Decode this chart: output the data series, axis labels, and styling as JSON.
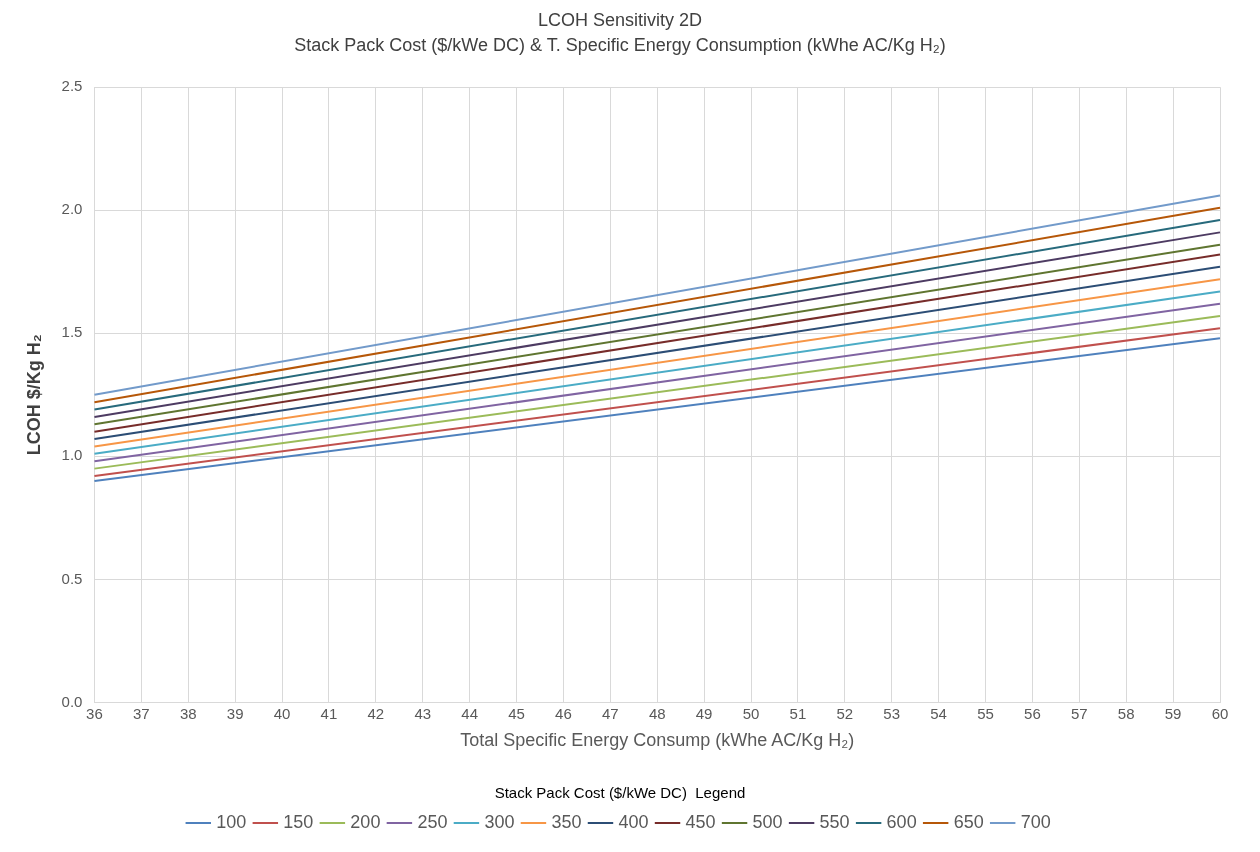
{
  "chart_data": {
    "type": "line",
    "title": "LCOH Sensitivity 2D",
    "subtitle": "Stack Pack Cost ($/kWe DC) & T. Specific Energy Consumption (kWhe AC/Kg H₂)",
    "xlabel": "Total Specific Energy Consump (kWhe AC/Kg H₂)",
    "ylabel": "LCOH $/Kg H₂",
    "legend_title": "Stack Pack Cost ($/kWe DC)  Legend",
    "legend": "bottom",
    "grid": true,
    "marker": "none",
    "line_style": "solid",
    "x": [
      36,
      60
    ],
    "xlim": [
      36,
      60
    ],
    "xticks": [
      36,
      37,
      38,
      39,
      40,
      41,
      42,
      43,
      44,
      45,
      46,
      47,
      48,
      49,
      50,
      51,
      52,
      53,
      54,
      55,
      56,
      57,
      58,
      59,
      60
    ],
    "ylim": [
      0,
      2.5
    ],
    "yticks": [
      {
        "value": 0,
        "label": "0.0"
      },
      {
        "value": 0.5,
        "label": "0.5"
      },
      {
        "value": 1,
        "label": "1.0"
      },
      {
        "value": 1.5,
        "label": "1.5"
      },
      {
        "value": 2,
        "label": "2.0"
      },
      {
        "value": 2.5,
        "label": "2.5"
      }
    ],
    "series": [
      {
        "name": "100",
        "color": "#4f81bd",
        "values": [
          0.9,
          1.48
        ]
      },
      {
        "name": "150",
        "color": "#c0504d",
        "values": [
          0.92,
          1.52
        ]
      },
      {
        "name": "200",
        "color": "#9bbb59",
        "values": [
          0.95,
          1.57
        ]
      },
      {
        "name": "250",
        "color": "#8064a2",
        "values": [
          0.98,
          1.62
        ]
      },
      {
        "name": "300",
        "color": "#4bacc6",
        "values": [
          1.01,
          1.67
        ]
      },
      {
        "name": "350",
        "color": "#f79646",
        "values": [
          1.04,
          1.72
        ]
      },
      {
        "name": "400",
        "color": "#2c4d75",
        "values": [
          1.07,
          1.77
        ]
      },
      {
        "name": "450",
        "color": "#772c2a",
        "values": [
          1.1,
          1.82
        ]
      },
      {
        "name": "500",
        "color": "#5f7530",
        "values": [
          1.13,
          1.86
        ]
      },
      {
        "name": "550",
        "color": "#4d3b62",
        "values": [
          1.16,
          1.91
        ]
      },
      {
        "name": "600",
        "color": "#276a7c",
        "values": [
          1.19,
          1.96
        ]
      },
      {
        "name": "650",
        "color": "#b65708",
        "values": [
          1.22,
          2.01
        ]
      },
      {
        "name": "700",
        "color": "#729aca",
        "values": [
          1.25,
          2.06
        ]
      }
    ]
  }
}
